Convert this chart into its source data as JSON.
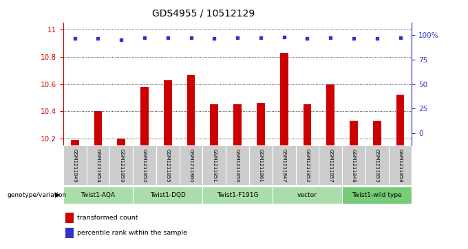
{
  "title": "GDS4955 / 10512129",
  "samples": [
    "GSM1211849",
    "GSM1211854",
    "GSM1211859",
    "GSM1211850",
    "GSM1211855",
    "GSM1211860",
    "GSM1211851",
    "GSM1211856",
    "GSM1211861",
    "GSM1211847",
    "GSM1211852",
    "GSM1211857",
    "GSM1211848",
    "GSM1211853",
    "GSM1211858"
  ],
  "red_values": [
    10.19,
    10.4,
    10.2,
    10.58,
    10.63,
    10.67,
    10.45,
    10.45,
    10.46,
    10.83,
    10.45,
    10.6,
    10.33,
    10.33,
    10.52
  ],
  "blue_values": [
    96,
    96,
    95,
    97,
    97,
    97,
    96,
    97,
    97,
    98,
    96,
    97,
    96,
    96,
    97
  ],
  "ylim_left": [
    10.15,
    11.05
  ],
  "ylim_right": [
    -12.5,
    112.5
  ],
  "yticks_left": [
    10.2,
    10.4,
    10.6,
    10.8,
    11.0
  ],
  "yticks_right": [
    0,
    25,
    50,
    75,
    100
  ],
  "yticklabels_left": [
    "10.2",
    "10.4",
    "10.6",
    "10.8",
    "11"
  ],
  "yticklabels_right": [
    "0",
    "25",
    "50",
    "75",
    "100%"
  ],
  "groups": [
    {
      "label": "Twist1-AQA",
      "start": 0,
      "end": 3
    },
    {
      "label": "Twist1-DQD",
      "start": 3,
      "end": 6
    },
    {
      "label": "Twist1-F191G",
      "start": 6,
      "end": 9
    },
    {
      "label": "vector",
      "start": 9,
      "end": 12
    },
    {
      "label": "Twist1-wild type",
      "start": 12,
      "end": 15
    }
  ],
  "bar_color": "#cc0000",
  "dot_color": "#3333cc",
  "legend_red": "transformed count",
  "legend_blue": "percentile rank within the sample",
  "xlabel_annotation": "genotype/variation",
  "bar_width": 0.35,
  "sample_bg_color": "#cccccc",
  "group_color_light": "#aaddaa",
  "group_color_dark": "#77cc77",
  "title_fontsize": 10,
  "white": "#ffffff",
  "black": "#000000"
}
